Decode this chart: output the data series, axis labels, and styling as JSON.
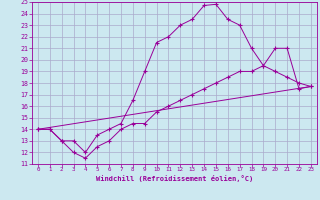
{
  "xlabel": "Windchill (Refroidissement éolien,°C)",
  "background_color": "#cce8f0",
  "grid_color": "#aaaacc",
  "line_color": "#990099",
  "xlim": [
    -0.5,
    23.5
  ],
  "ylim": [
    11,
    25
  ],
  "xticks": [
    0,
    1,
    2,
    3,
    4,
    5,
    6,
    7,
    8,
    9,
    10,
    11,
    12,
    13,
    14,
    15,
    16,
    17,
    18,
    19,
    20,
    21,
    22,
    23
  ],
  "yticks": [
    11,
    12,
    13,
    14,
    15,
    16,
    17,
    18,
    19,
    20,
    21,
    22,
    23,
    24,
    25
  ],
  "line1_x": [
    0,
    1,
    2,
    3,
    4,
    5,
    6,
    7,
    8,
    9,
    10,
    11,
    12,
    13,
    14,
    15,
    16,
    17,
    18,
    19,
    20,
    21,
    22,
    23
  ],
  "line1_y": [
    14,
    14,
    13,
    13,
    12,
    13.5,
    14,
    14.5,
    16.5,
    19,
    21.5,
    22,
    23,
    23.5,
    24.7,
    24.8,
    23.5,
    23,
    21,
    19.5,
    19,
    18.5,
    18,
    17.7
  ],
  "line2_x": [
    0,
    1,
    2,
    3,
    4,
    5,
    6,
    7,
    8,
    9,
    10,
    11,
    12,
    13,
    14,
    15,
    16,
    17,
    18,
    19,
    20,
    21,
    22,
    23
  ],
  "line2_y": [
    14,
    14,
    13,
    12,
    11.5,
    12.5,
    13,
    14,
    14.5,
    14.5,
    15.5,
    16,
    16.5,
    17,
    17.5,
    18,
    18.5,
    19,
    19,
    19.5,
    21,
    21,
    17.5,
    17.7
  ],
  "line3_x": [
    0,
    23
  ],
  "line3_y": [
    14,
    17.7
  ]
}
